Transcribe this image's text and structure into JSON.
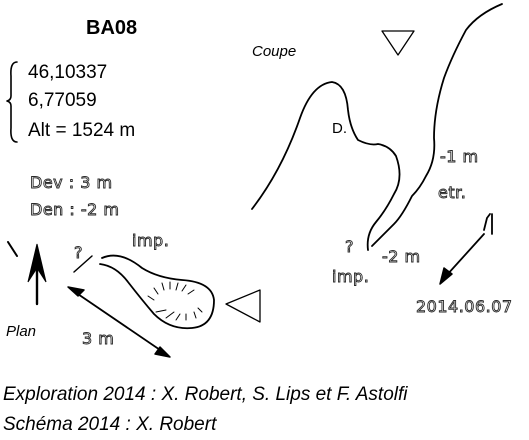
{
  "station": {
    "id": "BA08",
    "coords": [
      "46,10337",
      "6,77059"
    ],
    "altitude": "Alt = 1524 m"
  },
  "measurements": {
    "dev": "Dev : 3 m",
    "den": "Den : -2 m"
  },
  "plan": {
    "label": "Plan",
    "question_mark": "?",
    "note": "imp.",
    "length": "3 m"
  },
  "coupe": {
    "label": "Coupe",
    "d_label": "D.",
    "depth_1": "-1 m",
    "narrow": "etr.",
    "depth_2": "-2 m",
    "question_mark": "?",
    "note": "imp.",
    "date": "2014.06.07"
  },
  "credits": {
    "exploration": "Exploration 2014 : X. Robert, S. Lips et F. Astolfi",
    "schema": "Schéma 2014 : X. Robert"
  }
}
